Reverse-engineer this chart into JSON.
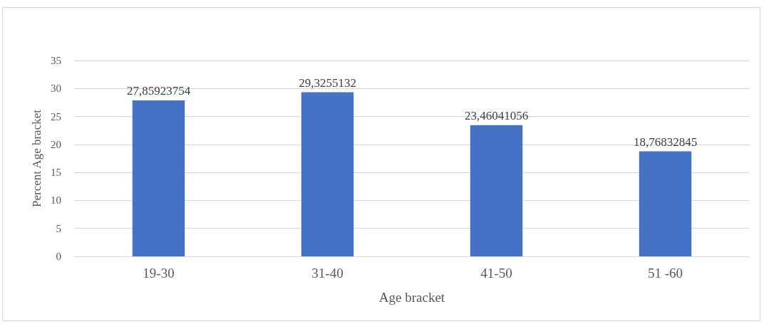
{
  "chart_data": {
    "type": "bar",
    "xlabel": "Age bracket",
    "ylabel": "Percent Age bracket",
    "categories": [
      "19-30",
      "31-40",
      "41-50",
      "51 -60"
    ],
    "values": [
      27.85923754,
      29.3255132,
      23.46041056,
      18.76832845
    ],
    "value_labels": [
      "27,85923754",
      "29,3255132",
      "23,46041056",
      "18,76832845"
    ],
    "color": "#4472c4",
    "ylim": [
      0,
      35
    ],
    "yticks": [
      0,
      5,
      10,
      15,
      20,
      25,
      30,
      35
    ],
    "grid": "y"
  }
}
